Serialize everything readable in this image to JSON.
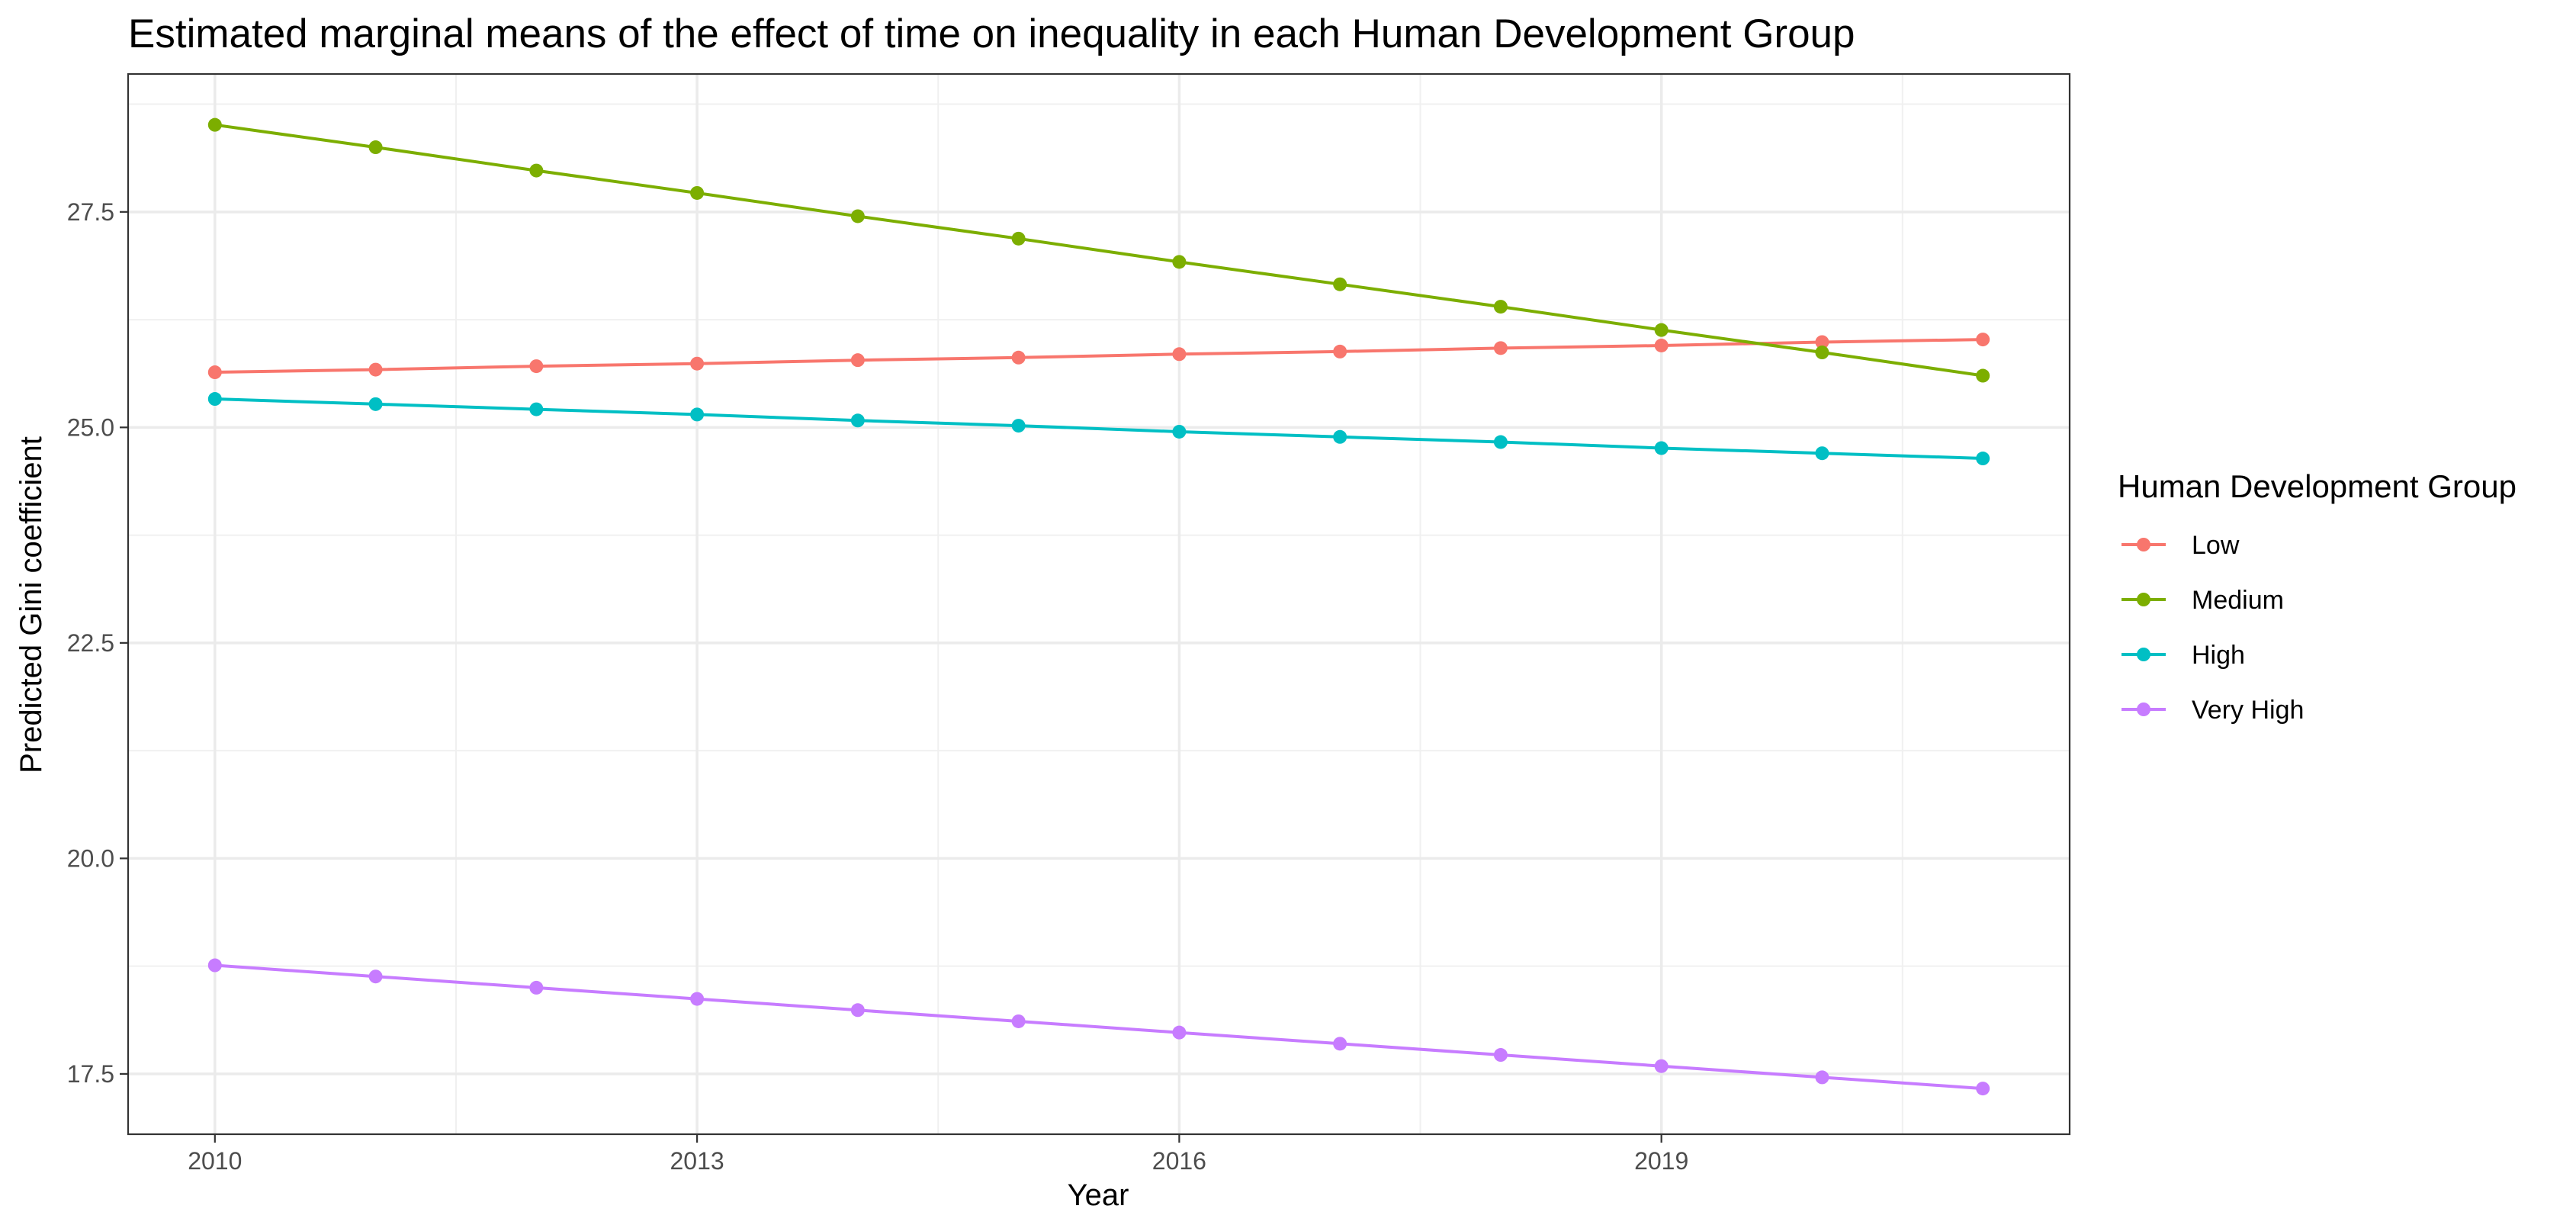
{
  "chart_data": {
    "type": "line",
    "title": "Estimated marginal means of the effect of time on inequality in each Human Development Group",
    "xlabel": "Year",
    "ylabel": "Predicted Gini coefficient",
    "x": [
      2010,
      2011,
      2012,
      2013,
      2014,
      2015,
      2016,
      2017,
      2018,
      2019,
      2020,
      2021
    ],
    "xlim": [
      2009.46,
      2021.54
    ],
    "ylim": [
      16.8,
      29.1
    ],
    "x_ticks": [
      2010,
      2013,
      2016,
      2019
    ],
    "x_tick_labels": [
      "2010",
      "2013",
      "2016",
      "2019"
    ],
    "y_ticks": [
      17.5,
      20.0,
      22.5,
      25.0,
      27.5
    ],
    "y_tick_labels": [
      "17.5",
      "20.0",
      "22.5",
      "25.0",
      "27.5"
    ],
    "grid": true,
    "legend": {
      "title": "Human Development Group",
      "placement": "right"
    },
    "series": [
      {
        "name": "Low",
        "color": "#F8766D",
        "values": [
          25.64,
          25.67,
          25.71,
          25.74,
          25.78,
          25.81,
          25.85,
          25.88,
          25.92,
          25.95,
          25.99,
          26.02
        ]
      },
      {
        "name": "Medium",
        "color": "#7CAE00",
        "values": [
          28.51,
          28.25,
          27.98,
          27.72,
          27.45,
          27.19,
          26.92,
          26.66,
          26.4,
          26.13,
          25.87,
          25.6
        ]
      },
      {
        "name": "High",
        "color": "#00BFC4",
        "values": [
          25.33,
          25.27,
          25.21,
          25.15,
          25.08,
          25.02,
          24.95,
          24.89,
          24.83,
          24.76,
          24.7,
          24.64
        ]
      },
      {
        "name": "Very High",
        "color": "#C77CFF",
        "values": [
          18.76,
          18.63,
          18.5,
          18.37,
          18.24,
          18.11,
          17.98,
          17.85,
          17.72,
          17.59,
          17.46,
          17.33
        ]
      }
    ]
  }
}
